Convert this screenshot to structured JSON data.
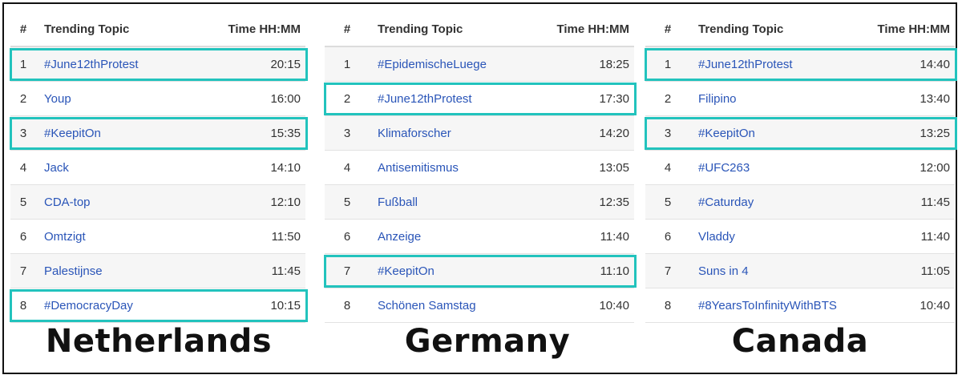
{
  "header": {
    "num": "#",
    "topic": "Trending Topic",
    "time": "Time HH:MM"
  },
  "accent": "#22c3bd",
  "panels": [
    {
      "country": "Netherlands",
      "rows": [
        {
          "num": "1",
          "topic": "#June12thProtest",
          "time": "20:15",
          "highlighted": true
        },
        {
          "num": "2",
          "topic": "Youp",
          "time": "16:00",
          "highlighted": false
        },
        {
          "num": "3",
          "topic": "#KeepitOn",
          "time": "15:35",
          "highlighted": true
        },
        {
          "num": "4",
          "topic": "Jack",
          "time": "14:10",
          "highlighted": false
        },
        {
          "num": "5",
          "topic": "CDA-top",
          "time": "12:10",
          "highlighted": false
        },
        {
          "num": "6",
          "topic": "Omtzigt",
          "time": "11:50",
          "highlighted": false
        },
        {
          "num": "7",
          "topic": "Palestijnse",
          "time": "11:45",
          "highlighted": false
        },
        {
          "num": "8",
          "topic": "#DemocracyDay",
          "time": "10:15",
          "highlighted": true
        }
      ]
    },
    {
      "country": "Germany",
      "rows": [
        {
          "num": "1",
          "topic": "#EpidemischeLuege",
          "time": "18:25",
          "highlighted": false
        },
        {
          "num": "2",
          "topic": "#June12thProtest",
          "time": "17:30",
          "highlighted": true
        },
        {
          "num": "3",
          "topic": "Klimaforscher",
          "time": "14:20",
          "highlighted": false
        },
        {
          "num": "4",
          "topic": "Antisemitismus",
          "time": "13:05",
          "highlighted": false
        },
        {
          "num": "5",
          "topic": "Fußball",
          "time": "12:35",
          "highlighted": false
        },
        {
          "num": "6",
          "topic": "Anzeige",
          "time": "11:40",
          "highlighted": false
        },
        {
          "num": "7",
          "topic": "#KeepitOn",
          "time": "11:10",
          "highlighted": true
        },
        {
          "num": "8",
          "topic": "Schönen Samstag",
          "time": "10:40",
          "highlighted": false
        }
      ]
    },
    {
      "country": "Canada",
      "rows": [
        {
          "num": "1",
          "topic": "#June12thProtest",
          "time": "14:40",
          "highlighted": true
        },
        {
          "num": "2",
          "topic": "Filipino",
          "time": "13:40",
          "highlighted": false
        },
        {
          "num": "3",
          "topic": "#KeepitOn",
          "time": "13:25",
          "highlighted": true
        },
        {
          "num": "4",
          "topic": "#UFC263",
          "time": "12:00",
          "highlighted": false
        },
        {
          "num": "5",
          "topic": "#Caturday",
          "time": "11:45",
          "highlighted": false
        },
        {
          "num": "6",
          "topic": "Vladdy",
          "time": "11:40",
          "highlighted": false
        },
        {
          "num": "7",
          "topic": "Suns in 4",
          "time": "11:05",
          "highlighted": false
        },
        {
          "num": "8",
          "topic": "#8YearsToInfinityWithBTS",
          "time": "10:40",
          "highlighted": false
        }
      ]
    }
  ]
}
